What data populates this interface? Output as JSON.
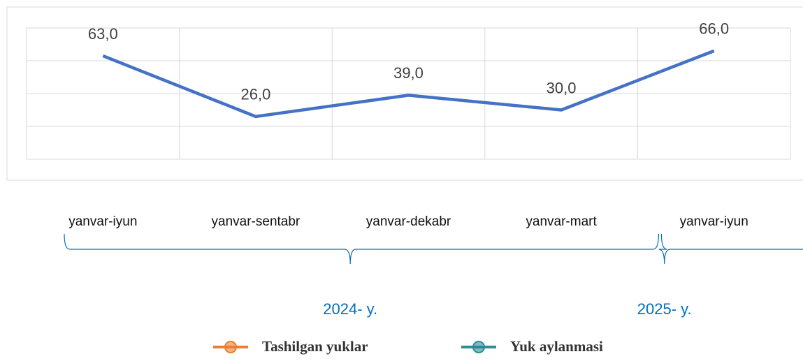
{
  "chart_data": {
    "type": "line",
    "categories": [
      "yanvar-iyun",
      "yanvar-sentabr",
      "yanvar-dekabr",
      "yanvar-mart",
      "yanvar-iyun"
    ],
    "values": [
      63,
      26,
      39,
      30,
      66
    ],
    "value_labels": [
      "63,0",
      "26,0",
      "39,0",
      "30,0",
      "66,0"
    ],
    "color": "#4472c4",
    "ylim": [
      0,
      80
    ],
    "yticks": [
      0,
      20,
      40,
      60,
      80
    ],
    "grid": true,
    "groups": [
      {
        "label": "2024- y.",
        "count": 4
      },
      {
        "label": "2025- y.",
        "count": 1
      }
    ],
    "legend": [
      {
        "name": "Tashilgan yuklar",
        "color": "#ed7d31"
      },
      {
        "name": "Yuk aylanmasi",
        "color": "#2e8b9a"
      }
    ]
  }
}
